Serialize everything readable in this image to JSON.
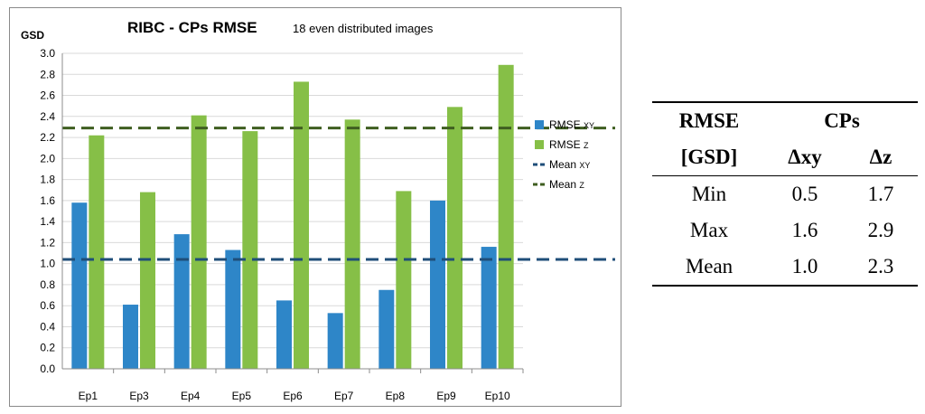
{
  "chart_data": {
    "type": "bar",
    "title": "RIBC - CPs RMSE",
    "subtitle": "18 even distributed images",
    "ylabel": "GSD",
    "xlabel": "",
    "ylim": [
      0,
      3.0
    ],
    "ytick_step": 0.2,
    "yticks": [
      "0.0",
      "0.2",
      "0.4",
      "0.6",
      "0.8",
      "1.0",
      "1.2",
      "1.4",
      "1.6",
      "1.8",
      "2.0",
      "2.2",
      "2.4",
      "2.6",
      "2.8",
      "3.0"
    ],
    "categories": [
      "Ep1",
      "Ep3",
      "Ep4",
      "Ep5",
      "Ep6",
      "Ep7",
      "Ep8",
      "Ep9",
      "Ep10"
    ],
    "series": [
      {
        "name": "RMSE",
        "sub": "XY",
        "color": "#2e86c8",
        "values": [
          1.58,
          0.61,
          1.28,
          1.13,
          0.65,
          0.53,
          0.75,
          1.6,
          1.16
        ]
      },
      {
        "name": "RMSE",
        "sub": "Z",
        "color": "#86bf47",
        "values": [
          2.22,
          1.68,
          2.41,
          2.26,
          2.73,
          2.37,
          1.69,
          2.49,
          2.89
        ]
      }
    ],
    "reference_lines": [
      {
        "name": "Mean",
        "sub": "XY",
        "value": 1.04,
        "color": "#1f4e79",
        "style": "dashed"
      },
      {
        "name": "Mean",
        "sub": "Z",
        "value": 2.29,
        "color": "#3f5e20",
        "style": "dashed"
      }
    ],
    "legend": "right",
    "grid": true
  },
  "table": {
    "header_row1": {
      "left": "RMSE",
      "right": "CPs"
    },
    "header_row2": {
      "left": "[GSD]",
      "col1": "Δxy",
      "col2": "Δz"
    },
    "rows": [
      {
        "label": "Min",
        "xy": "0.5",
        "z": "1.7"
      },
      {
        "label": "Max",
        "xy": "1.6",
        "z": "2.9"
      },
      {
        "label": "Mean",
        "xy": "1.0",
        "z": "2.3"
      }
    ]
  }
}
